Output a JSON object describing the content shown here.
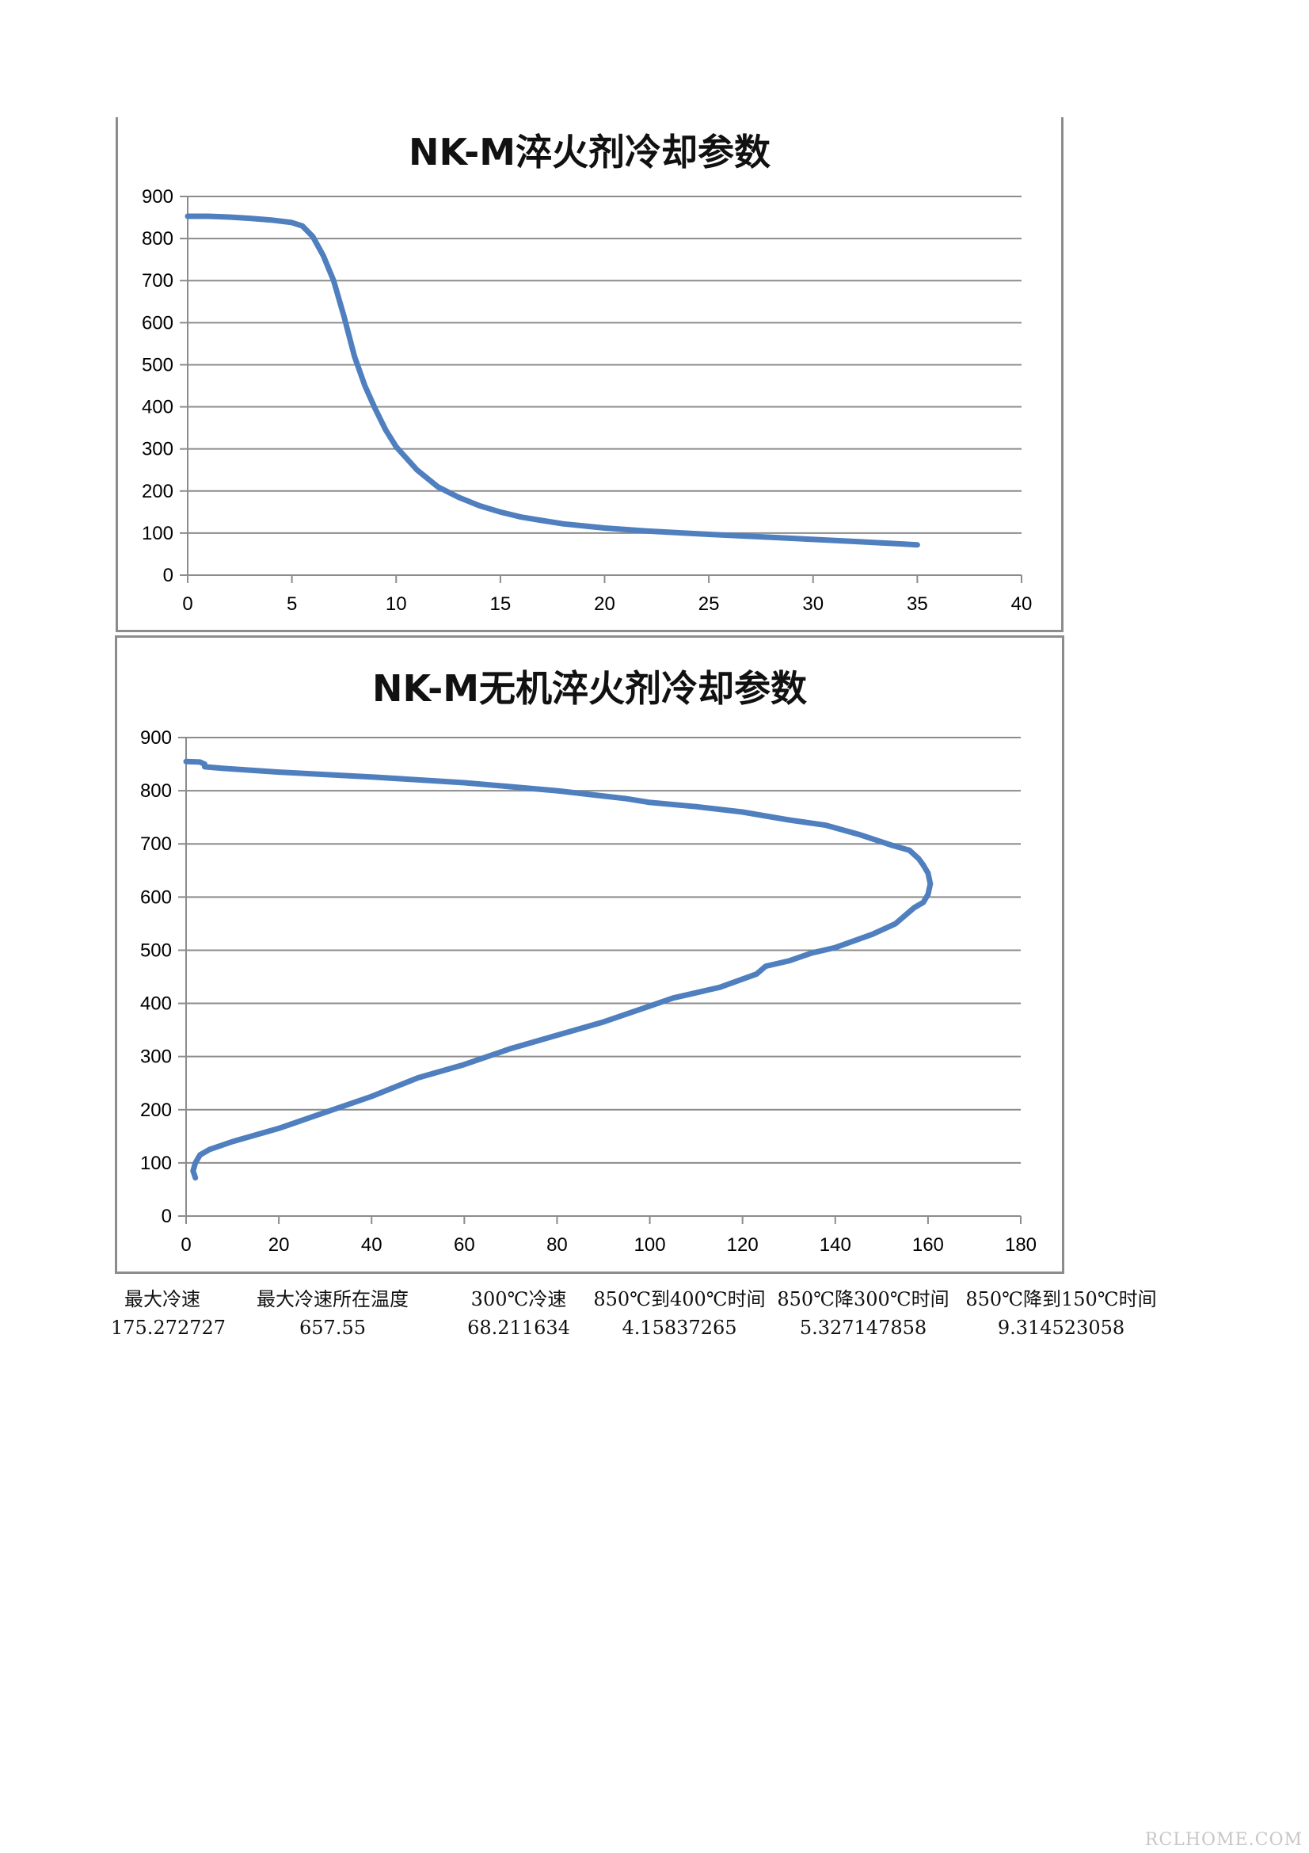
{
  "charts": [
    {
      "title": "NK-M淬火剂冷却参数",
      "chart_data": {
        "type": "line",
        "title": "NK-M淬火剂冷却参数",
        "xlabel": "",
        "ylabel": "",
        "xlim": [
          0,
          40
        ],
        "ylim": [
          0,
          900
        ],
        "x_ticks": [
          0,
          5,
          10,
          15,
          20,
          25,
          30,
          35,
          40
        ],
        "y_ticks": [
          0,
          100,
          200,
          300,
          400,
          500,
          600,
          700,
          800,
          900
        ],
        "grid": "horizontal",
        "color": "#4f7fbe",
        "series": [
          {
            "x": [
              0,
              1,
              2,
              3,
              4,
              5,
              5.5,
              6,
              6.5,
              7,
              7.5,
              8,
              8.5,
              9,
              9.5,
              10,
              11,
              12,
              13,
              14,
              15,
              16,
              17,
              18,
              20,
              22,
              25,
              28,
              30,
              32,
              34,
              35
            ],
            "y": [
              853,
              853,
              851,
              848,
              844,
              838,
              830,
              805,
              760,
              700,
              615,
              520,
              450,
              395,
              345,
              305,
              250,
              210,
              185,
              165,
              150,
              138,
              130,
              122,
              112,
              105,
              97,
              90,
              85,
              80,
              75,
              72
            ]
          }
        ]
      }
    },
    {
      "title": "NK-M无机淬火剂冷却参数",
      "chart_data": {
        "type": "line",
        "title": "NK-M无机淬火剂冷却参数",
        "xlabel": "",
        "ylabel": "",
        "xlim": [
          0,
          180
        ],
        "ylim": [
          0,
          900
        ],
        "x_ticks": [
          0,
          20,
          40,
          60,
          80,
          100,
          120,
          140,
          160,
          180
        ],
        "y_ticks": [
          0,
          100,
          200,
          300,
          400,
          500,
          600,
          700,
          800,
          900
        ],
        "grid": "horizontal",
        "color": "#4f7fbe",
        "series": [
          {
            "x": [
              0,
              3,
              4,
              4,
              8,
              20,
              40,
              60,
              80,
              95,
              100,
              110,
              120,
              130,
              138,
              145,
              152,
              156,
              158,
              159,
              160,
              160.5,
              160,
              159,
              157,
              153,
              148,
              140,
              135,
              130,
              125,
              123,
              115,
              105,
              100,
              90,
              80,
              70,
              60,
              50,
              40,
              30,
              20,
              10,
              5,
              3,
              2,
              1.5,
              2
            ],
            "y": [
              855,
              854,
              850,
              845,
              842,
              835,
              826,
              815,
              800,
              785,
              778,
              770,
              760,
              745,
              735,
              718,
              698,
              688,
              672,
              660,
              645,
              625,
              605,
              590,
              580,
              550,
              530,
              505,
              495,
              480,
              470,
              455,
              430,
              410,
              395,
              365,
              340,
              315,
              285,
              260,
              225,
              195,
              165,
              140,
              125,
              115,
              100,
              85,
              72
            ]
          }
        ]
      }
    }
  ],
  "stats": {
    "columns": [
      {
        "label": "最大冷速",
        "value": "175.272727"
      },
      {
        "label": "最大冷速所在温度",
        "value": "657.55"
      },
      {
        "label": "300℃冷速",
        "value": "68.211634"
      },
      {
        "label": "850℃到400℃时间",
        "value": "4.15837265"
      },
      {
        "label": "850℃降300℃时间",
        "value": "5.327147858"
      },
      {
        "label": "850℃降到150℃时间",
        "value": "9.314523058"
      }
    ]
  },
  "watermark": "RCLHOME.COM"
}
